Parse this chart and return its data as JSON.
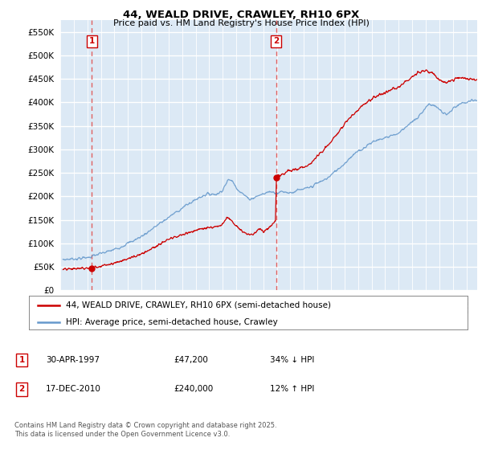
{
  "title": "44, WEALD DRIVE, CRAWLEY, RH10 6PX",
  "subtitle": "Price paid vs. HM Land Registry's House Price Index (HPI)",
  "ytick_values": [
    0,
    50000,
    100000,
    150000,
    200000,
    250000,
    300000,
    350000,
    400000,
    450000,
    500000,
    550000
  ],
  "ylim": [
    0,
    575000
  ],
  "xlim_start": 1995.2,
  "xlim_end": 2025.8,
  "sale1_date": 1997.33,
  "sale1_price": 47200,
  "sale1_label": "1",
  "sale2_date": 2010.96,
  "sale2_price": 240000,
  "sale2_label": "2",
  "legend_line1": "44, WEALD DRIVE, CRAWLEY, RH10 6PX (semi-detached house)",
  "legend_line2": "HPI: Average price, semi-detached house, Crawley",
  "table_row1": [
    "1",
    "30-APR-1997",
    "£47,200",
    "34% ↓ HPI"
  ],
  "table_row2": [
    "2",
    "17-DEC-2010",
    "£240,000",
    "12% ↑ HPI"
  ],
  "footer": "Contains HM Land Registry data © Crown copyright and database right 2025.\nThis data is licensed under the Open Government Licence v3.0.",
  "bg_color": "#dce9f5",
  "red_color": "#cc0000",
  "blue_color": "#6699cc",
  "grid_color": "#ffffff",
  "dashed_color": "#e06060"
}
